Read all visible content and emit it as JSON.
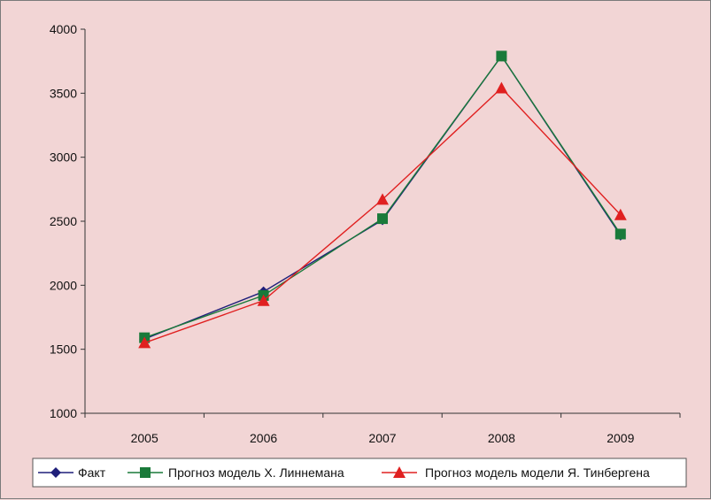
{
  "chart_data": {
    "type": "line",
    "categories": [
      "2005",
      "2006",
      "2007",
      "2008",
      "2009"
    ],
    "ylim": [
      1000,
      4000
    ],
    "yticks": [
      1000,
      1500,
      2000,
      2500,
      3000,
      3500,
      4000
    ],
    "grid": false,
    "legend_position": "bottom",
    "series": [
      {
        "name": "Факт",
        "values": [
          1580,
          1950,
          2510,
          3790,
          2390
        ],
        "color": "#1f1f7a",
        "marker": "diamond"
      },
      {
        "name": "Прогноз модель Х. Линнемана",
        "values": [
          1590,
          1920,
          2520,
          3790,
          2400
        ],
        "color": "#1a7a3a",
        "marker": "square"
      },
      {
        "name": "Прогноз модель модели Я. Тинбергена",
        "values": [
          1550,
          1880,
          2670,
          3540,
          2550
        ],
        "color": "#e02020",
        "marker": "triangle"
      }
    ]
  }
}
